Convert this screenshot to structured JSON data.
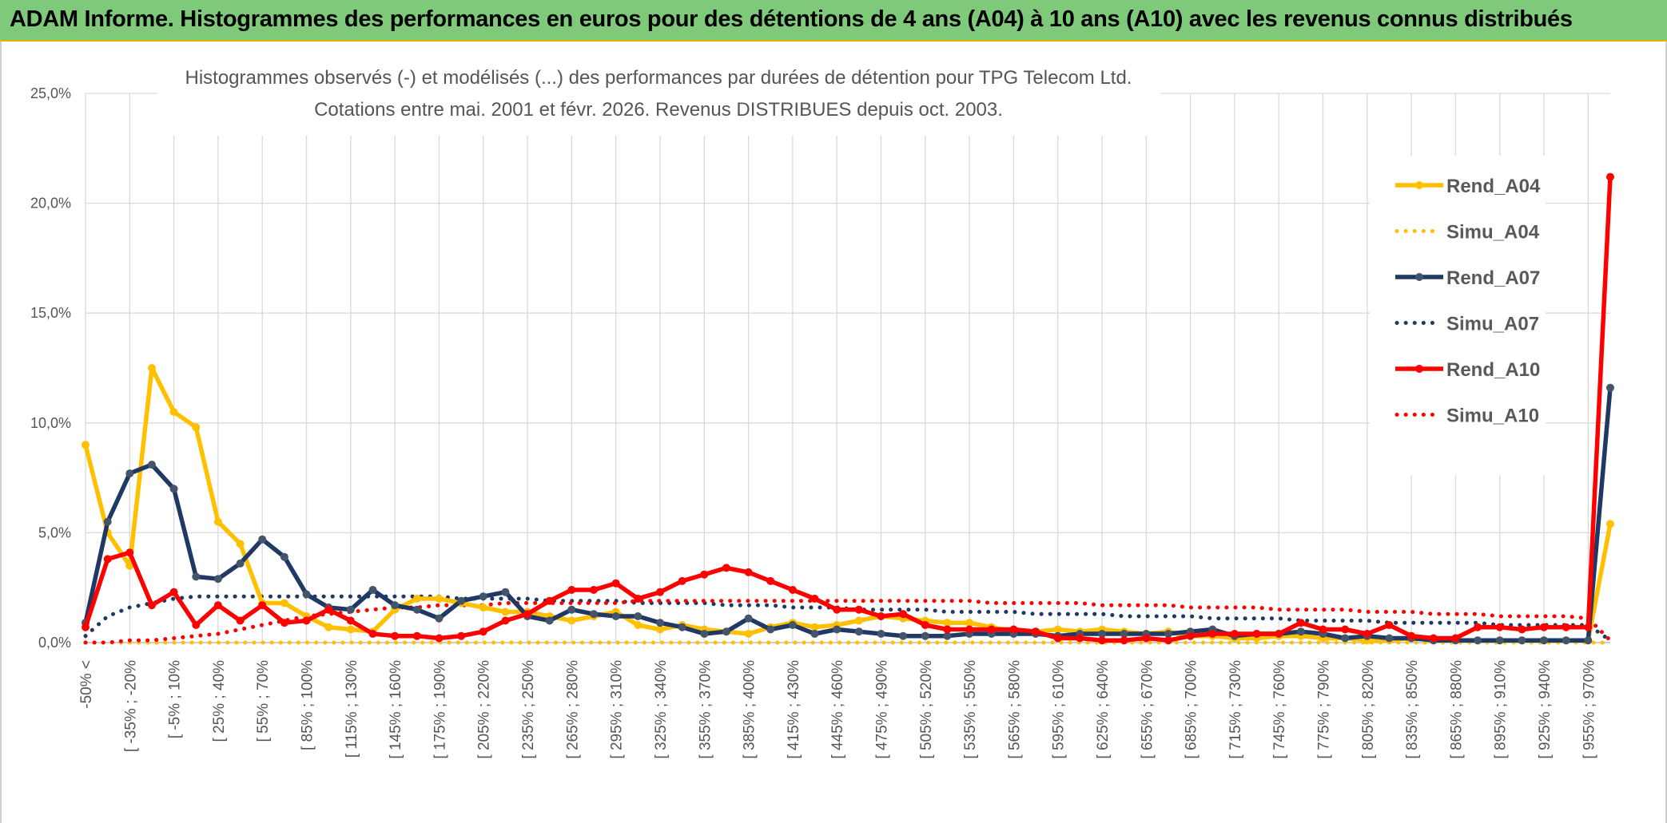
{
  "header": {
    "title": "ADAM Informe. Histogrammes des performances en euros pour des détentions de 4 ans (A04) à 10 ans (A10) avec les revenus connus distribués"
  },
  "chart_data": {
    "type": "line",
    "title_line1": "Histogrammes observés (-) et modélisés (...) des performances par durées de détention pour TPG Telecom Ltd.",
    "title_line2": "Cotations entre mai. 2001 et févr. 2026. Revenus DISTRIBUES depuis oct. 2003.",
    "ylim": [
      0,
      25
    ],
    "y_ticks": [
      "0,0%",
      "5,0%",
      "10,0%",
      "15,0%",
      "20,0%",
      "25,0%"
    ],
    "x_tick_labels": [
      "-50% <",
      "[ -35% ; -20%",
      "[ -5% ; 10%",
      "[ 25% ; 40%",
      "[ 55% ; 70%",
      "[ 85% ; 100%",
      "[ 115% ; 130%",
      "[ 145% ; 160%",
      "[ 175% ; 190%",
      "[ 205% ; 220%",
      "[ 235% ; 250%",
      "[ 265% ; 280%",
      "[ 295% ; 310%",
      "[ 325% ; 340%",
      "[ 355% ; 370%",
      "[ 385% ; 400%",
      "[ 415% ; 430%",
      "[ 445% ; 460%",
      "[ 475% ; 490%",
      "[ 505% ; 520%",
      "[ 535% ; 550%",
      "[ 565% ; 580%",
      "[ 595% ; 610%",
      "[ 625% ; 640%",
      "[ 655% ; 670%",
      "[ 685% ; 700%",
      "[ 715% ; 730%",
      "[ 745% ; 760%",
      "[ 775% ; 790%",
      "[ 805% ; 820%",
      "[ 835% ; 850%",
      "[ 865% ; 880%",
      "[ 895% ; 910%",
      "[ 925% ; 940%",
      "[ 955% ; 970%"
    ],
    "n_points": 70,
    "series": [
      {
        "name": "Rend_A04",
        "style": "solid",
        "color": "#ffc000",
        "values": [
          9.0,
          5.0,
          3.5,
          12.5,
          10.5,
          9.8,
          5.5,
          4.5,
          1.8,
          1.8,
          1.2,
          0.7,
          0.6,
          0.5,
          1.5,
          2.0,
          2.0,
          1.8,
          1.6,
          1.4,
          1.4,
          1.2,
          1.0,
          1.2,
          1.4,
          0.8,
          0.6,
          0.8,
          0.6,
          0.5,
          0.4,
          0.7,
          0.9,
          0.7,
          0.8,
          1.0,
          1.2,
          1.1,
          1.0,
          0.9,
          0.9,
          0.7,
          0.5,
          0.5,
          0.6,
          0.5,
          0.6,
          0.5,
          0.4,
          0.5,
          0.3,
          0.3,
          0.2,
          0.2,
          0.3,
          0.3,
          0.2,
          0.2,
          0.1,
          0.1,
          0.2,
          0.1,
          0.1,
          0.1,
          0.1,
          0.1,
          0.1,
          0.1,
          0.1,
          5.4
        ]
      },
      {
        "name": "Simu_A04",
        "style": "dotted",
        "color": "#ffc000",
        "values": [
          0.0,
          0.0,
          0.0,
          0.0,
          0.0,
          0.0,
          0.0,
          0.0,
          0.0,
          0.0,
          0.0,
          0.0,
          0.0,
          0.0,
          0.0,
          0.0,
          0.0,
          0.0,
          0.0,
          0.0,
          0.0,
          0.0,
          0.0,
          0.0,
          0.0,
          0.0,
          0.0,
          0.0,
          0.0,
          0.0,
          0.0,
          0.0,
          0.0,
          0.0,
          0.0,
          0.0,
          0.0,
          0.0,
          0.0,
          0.0,
          0.0,
          0.0,
          0.0,
          0.0,
          0.0,
          0.0,
          0.0,
          0.0,
          0.0,
          0.0,
          0.0,
          0.0,
          0.0,
          0.0,
          0.0,
          0.0,
          0.0,
          0.0,
          0.0,
          0.0,
          0.0,
          0.0,
          0.0,
          0.0,
          0.0,
          0.0,
          0.0,
          0.0,
          0.0,
          0.0
        ]
      },
      {
        "name": "Rend_A07",
        "style": "solid",
        "color": "#1f3864",
        "values": [
          0.9,
          5.5,
          7.7,
          8.1,
          7.0,
          3.0,
          2.9,
          3.6,
          4.7,
          3.9,
          2.2,
          1.6,
          1.5,
          2.4,
          1.7,
          1.5,
          1.1,
          1.9,
          2.1,
          2.3,
          1.2,
          1.0,
          1.5,
          1.3,
          1.2,
          1.2,
          0.9,
          0.7,
          0.4,
          0.5,
          1.1,
          0.6,
          0.8,
          0.4,
          0.6,
          0.5,
          0.4,
          0.3,
          0.3,
          0.3,
          0.4,
          0.4,
          0.4,
          0.4,
          0.3,
          0.4,
          0.4,
          0.4,
          0.4,
          0.4,
          0.5,
          0.6,
          0.3,
          0.4,
          0.4,
          0.5,
          0.4,
          0.2,
          0.3,
          0.2,
          0.2,
          0.1,
          0.1,
          0.1,
          0.1,
          0.1,
          0.1,
          0.1,
          0.1,
          11.6
        ]
      },
      {
        "name": "Simu_A07",
        "style": "dotted",
        "color": "#1f3864",
        "values": [
          0.3,
          1.2,
          1.6,
          1.8,
          2.0,
          2.1,
          2.1,
          2.1,
          2.1,
          2.1,
          2.1,
          2.1,
          2.1,
          2.1,
          2.1,
          2.1,
          2.1,
          2.0,
          2.0,
          2.0,
          2.0,
          1.9,
          1.9,
          1.9,
          1.9,
          1.8,
          1.8,
          1.8,
          1.8,
          1.7,
          1.7,
          1.7,
          1.6,
          1.6,
          1.6,
          1.5,
          1.5,
          1.5,
          1.5,
          1.4,
          1.4,
          1.4,
          1.4,
          1.3,
          1.3,
          1.3,
          1.3,
          1.2,
          1.2,
          1.2,
          1.2,
          1.1,
          1.1,
          1.1,
          1.1,
          1.0,
          1.0,
          1.0,
          1.0,
          0.9,
          0.9,
          0.9,
          0.9,
          0.9,
          0.8,
          0.8,
          0.8,
          0.8,
          0.8,
          0.1
        ]
      },
      {
        "name": "Rend_A10",
        "style": "solid",
        "color": "#ff0000",
        "values": [
          0.7,
          3.8,
          4.1,
          1.7,
          2.3,
          0.8,
          1.7,
          1.0,
          1.7,
          0.9,
          1.0,
          1.5,
          1.0,
          0.4,
          0.3,
          0.3,
          0.2,
          0.3,
          0.5,
          1.0,
          1.3,
          1.9,
          2.4,
          2.4,
          2.7,
          2.0,
          2.3,
          2.8,
          3.1,
          3.4,
          3.2,
          2.8,
          2.4,
          2.0,
          1.5,
          1.5,
          1.2,
          1.3,
          0.8,
          0.6,
          0.6,
          0.6,
          0.6,
          0.5,
          0.2,
          0.2,
          0.1,
          0.1,
          0.2,
          0.1,
          0.3,
          0.4,
          0.4,
          0.4,
          0.4,
          0.9,
          0.6,
          0.6,
          0.4,
          0.8,
          0.3,
          0.2,
          0.2,
          0.7,
          0.7,
          0.6,
          0.7,
          0.7,
          0.7,
          21.2
        ]
      },
      {
        "name": "Simu_A10",
        "style": "dotted",
        "color": "#ff0000",
        "values": [
          0.0,
          0.0,
          0.1,
          0.1,
          0.2,
          0.3,
          0.4,
          0.6,
          0.8,
          1.0,
          1.2,
          1.3,
          1.4,
          1.5,
          1.6,
          1.6,
          1.7,
          1.7,
          1.7,
          1.8,
          1.8,
          1.8,
          1.8,
          1.8,
          1.8,
          1.9,
          1.9,
          1.9,
          1.9,
          1.9,
          1.9,
          1.9,
          1.9,
          1.9,
          1.9,
          1.9,
          1.9,
          1.9,
          1.9,
          1.9,
          1.9,
          1.8,
          1.8,
          1.8,
          1.8,
          1.8,
          1.7,
          1.7,
          1.7,
          1.7,
          1.6,
          1.6,
          1.6,
          1.6,
          1.5,
          1.5,
          1.5,
          1.5,
          1.4,
          1.4,
          1.4,
          1.3,
          1.3,
          1.3,
          1.2,
          1.2,
          1.2,
          1.2,
          1.1,
          0.1
        ]
      }
    ],
    "legend": [
      "Rend_A04",
      "Simu_A04",
      "Rend_A07",
      "Simu_A07",
      "Rend_A10",
      "Simu_A10"
    ]
  }
}
